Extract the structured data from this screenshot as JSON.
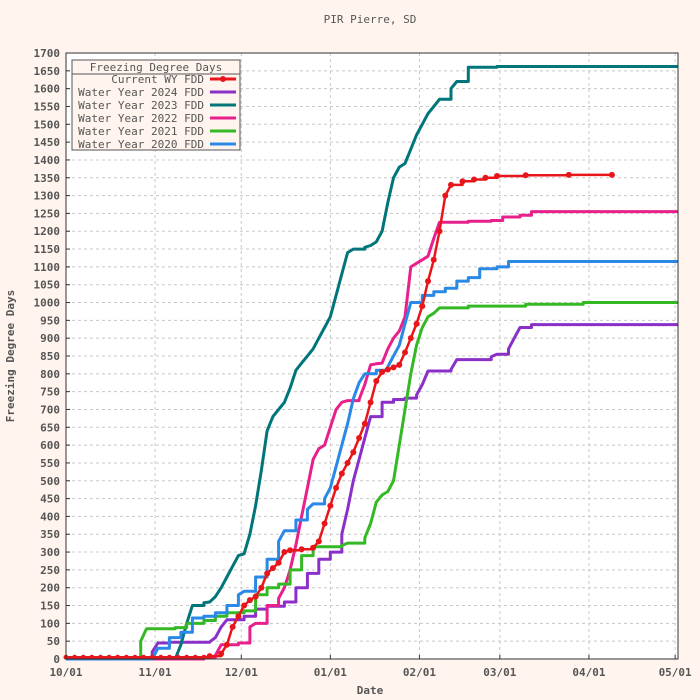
{
  "chart_data": {
    "type": "line",
    "title": "PIR Pierre, SD",
    "xlabel": "Date",
    "ylabel": "Freezing Degree Days",
    "ylim": [
      0,
      1700
    ],
    "ytick_step": 50,
    "xlim_days": [
      0,
      213
    ],
    "x_ticks": [
      {
        "label": "10/01",
        "day": 0
      },
      {
        "label": "11/01",
        "day": 31
      },
      {
        "label": "12/01",
        "day": 61
      },
      {
        "label": "01/01",
        "day": 92
      },
      {
        "label": "02/01",
        "day": 123
      },
      {
        "label": "03/01",
        "day": 151
      },
      {
        "label": "04/01",
        "day": 182
      },
      {
        "label": "05/01",
        "day": 212
      }
    ],
    "grid": true,
    "legend": {
      "title": "Freezing Degree Days",
      "placement": "top-left"
    },
    "series": [
      {
        "name": "Current WY FDD",
        "color": "#e8161b",
        "marker": "circle",
        "points": [
          [
            0,
            5
          ],
          [
            40,
            5
          ],
          [
            50,
            8
          ],
          [
            54,
            15
          ],
          [
            56,
            40
          ],
          [
            58,
            90
          ],
          [
            60,
            120
          ],
          [
            62,
            150
          ],
          [
            64,
            165
          ],
          [
            66,
            175
          ],
          [
            68,
            200
          ],
          [
            70,
            240
          ],
          [
            72,
            255
          ],
          [
            74,
            270
          ],
          [
            76,
            300
          ],
          [
            78,
            305
          ],
          [
            82,
            308
          ],
          [
            86,
            312
          ],
          [
            88,
            330
          ],
          [
            90,
            380
          ],
          [
            92,
            430
          ],
          [
            94,
            480
          ],
          [
            96,
            520
          ],
          [
            98,
            550
          ],
          [
            100,
            580
          ],
          [
            102,
            620
          ],
          [
            104,
            660
          ],
          [
            106,
            720
          ],
          [
            108,
            780
          ],
          [
            110,
            805
          ],
          [
            112,
            812
          ],
          [
            114,
            818
          ],
          [
            116,
            825
          ],
          [
            118,
            860
          ],
          [
            120,
            900
          ],
          [
            122,
            940
          ],
          [
            124,
            990
          ],
          [
            126,
            1060
          ],
          [
            128,
            1120
          ],
          [
            130,
            1200
          ],
          [
            132,
            1300
          ],
          [
            134,
            1330
          ],
          [
            138,
            1340
          ],
          [
            142,
            1345
          ],
          [
            146,
            1350
          ],
          [
            150,
            1355
          ],
          [
            160,
            1357
          ],
          [
            175,
            1358
          ],
          [
            190,
            1358
          ]
        ]
      },
      {
        "name": "Water Year 2024 FDD",
        "color": "#8b2fc9",
        "marker": "none",
        "points": [
          [
            0,
            0
          ],
          [
            26,
            0
          ],
          [
            30,
            20
          ],
          [
            32,
            45
          ],
          [
            36,
            47
          ],
          [
            50,
            48
          ],
          [
            52,
            60
          ],
          [
            54,
            90
          ],
          [
            56,
            110
          ],
          [
            62,
            120
          ],
          [
            66,
            140
          ],
          [
            70,
            148
          ],
          [
            76,
            160
          ],
          [
            80,
            200
          ],
          [
            84,
            240
          ],
          [
            88,
            280
          ],
          [
            92,
            300
          ],
          [
            96,
            350
          ],
          [
            98,
            420
          ],
          [
            100,
            500
          ],
          [
            102,
            560
          ],
          [
            104,
            620
          ],
          [
            106,
            680
          ],
          [
            110,
            720
          ],
          [
            114,
            728
          ],
          [
            118,
            732
          ],
          [
            122,
            740
          ],
          [
            124,
            770
          ],
          [
            126,
            808
          ],
          [
            134,
            812
          ],
          [
            136,
            840
          ],
          [
            148,
            848
          ],
          [
            150,
            855
          ],
          [
            154,
            870
          ],
          [
            156,
            900
          ],
          [
            158,
            930
          ],
          [
            162,
            938
          ],
          [
            213,
            938
          ]
        ]
      },
      {
        "name": "Water Year 2023 FDD",
        "color": "#00757a",
        "marker": "none",
        "points": [
          [
            0,
            0
          ],
          [
            38,
            0
          ],
          [
            40,
            40
          ],
          [
            42,
            100
          ],
          [
            44,
            150
          ],
          [
            48,
            158
          ],
          [
            50,
            160
          ],
          [
            52,
            175
          ],
          [
            54,
            200
          ],
          [
            56,
            230
          ],
          [
            58,
            260
          ],
          [
            60,
            290
          ],
          [
            62,
            295
          ],
          [
            64,
            350
          ],
          [
            66,
            430
          ],
          [
            68,
            530
          ],
          [
            70,
            640
          ],
          [
            72,
            680
          ],
          [
            74,
            700
          ],
          [
            76,
            720
          ],
          [
            78,
            760
          ],
          [
            80,
            810
          ],
          [
            82,
            830
          ],
          [
            84,
            850
          ],
          [
            86,
            870
          ],
          [
            88,
            900
          ],
          [
            90,
            930
          ],
          [
            92,
            960
          ],
          [
            94,
            1020
          ],
          [
            96,
            1080
          ],
          [
            98,
            1140
          ],
          [
            100,
            1150
          ],
          [
            104,
            1155
          ],
          [
            106,
            1160
          ],
          [
            108,
            1170
          ],
          [
            110,
            1200
          ],
          [
            112,
            1280
          ],
          [
            114,
            1350
          ],
          [
            116,
            1380
          ],
          [
            118,
            1390
          ],
          [
            120,
            1430
          ],
          [
            122,
            1470
          ],
          [
            124,
            1500
          ],
          [
            126,
            1530
          ],
          [
            128,
            1550
          ],
          [
            130,
            1570
          ],
          [
            134,
            1600
          ],
          [
            136,
            1620
          ],
          [
            140,
            1660
          ],
          [
            150,
            1662
          ],
          [
            213,
            1662
          ]
        ]
      },
      {
        "name": "Water Year 2022 FDD",
        "color": "#e8208c",
        "marker": "none",
        "points": [
          [
            0,
            0
          ],
          [
            44,
            0
          ],
          [
            48,
            5
          ],
          [
            52,
            10
          ],
          [
            54,
            40
          ],
          [
            60,
            45
          ],
          [
            64,
            90
          ],
          [
            66,
            100
          ],
          [
            70,
            150
          ],
          [
            74,
            170
          ],
          [
            76,
            200
          ],
          [
            78,
            250
          ],
          [
            80,
            320
          ],
          [
            82,
            400
          ],
          [
            84,
            480
          ],
          [
            86,
            560
          ],
          [
            88,
            590
          ],
          [
            90,
            600
          ],
          [
            92,
            650
          ],
          [
            94,
            700
          ],
          [
            96,
            720
          ],
          [
            98,
            725
          ],
          [
            102,
            728
          ],
          [
            104,
            770
          ],
          [
            106,
            825
          ],
          [
            108,
            828
          ],
          [
            110,
            830
          ],
          [
            112,
            870
          ],
          [
            114,
            900
          ],
          [
            116,
            920
          ],
          [
            118,
            960
          ],
          [
            120,
            1100
          ],
          [
            122,
            1110
          ],
          [
            124,
            1120
          ],
          [
            126,
            1130
          ],
          [
            128,
            1180
          ],
          [
            130,
            1225
          ],
          [
            140,
            1228
          ],
          [
            148,
            1230
          ],
          [
            152,
            1240
          ],
          [
            158,
            1245
          ],
          [
            162,
            1255
          ],
          [
            213,
            1255
          ]
        ]
      },
      {
        "name": "Water Year 2021 FDD",
        "color": "#34b925",
        "marker": "none",
        "points": [
          [
            0,
            0
          ],
          [
            22,
            0
          ],
          [
            26,
            50
          ],
          [
            28,
            85
          ],
          [
            38,
            88
          ],
          [
            42,
            100
          ],
          [
            48,
            108
          ],
          [
            52,
            120
          ],
          [
            56,
            130
          ],
          [
            62,
            135
          ],
          [
            66,
            180
          ],
          [
            70,
            200
          ],
          [
            74,
            210
          ],
          [
            78,
            250
          ],
          [
            82,
            290
          ],
          [
            86,
            315
          ],
          [
            96,
            318
          ],
          [
            98,
            325
          ],
          [
            104,
            340
          ],
          [
            106,
            380
          ],
          [
            108,
            440
          ],
          [
            110,
            460
          ],
          [
            112,
            470
          ],
          [
            114,
            500
          ],
          [
            116,
            600
          ],
          [
            118,
            700
          ],
          [
            120,
            800
          ],
          [
            122,
            880
          ],
          [
            124,
            930
          ],
          [
            126,
            960
          ],
          [
            128,
            970
          ],
          [
            130,
            985
          ],
          [
            140,
            990
          ],
          [
            160,
            995
          ],
          [
            180,
            1000
          ],
          [
            213,
            1000
          ]
        ]
      },
      {
        "name": "Water Year 2020 FDD",
        "color": "#2a88e6",
        "marker": "none",
        "points": [
          [
            0,
            0
          ],
          [
            30,
            0
          ],
          [
            32,
            30
          ],
          [
            36,
            60
          ],
          [
            40,
            75
          ],
          [
            44,
            115
          ],
          [
            48,
            120
          ],
          [
            52,
            130
          ],
          [
            56,
            150
          ],
          [
            60,
            180
          ],
          [
            62,
            190
          ],
          [
            66,
            230
          ],
          [
            70,
            280
          ],
          [
            74,
            330
          ],
          [
            76,
            360
          ],
          [
            80,
            390
          ],
          [
            84,
            420
          ],
          [
            86,
            435
          ],
          [
            90,
            450
          ],
          [
            92,
            480
          ],
          [
            94,
            540
          ],
          [
            96,
            600
          ],
          [
            98,
            660
          ],
          [
            100,
            730
          ],
          [
            102,
            775
          ],
          [
            104,
            800
          ],
          [
            108,
            810
          ],
          [
            112,
            820
          ],
          [
            114,
            850
          ],
          [
            116,
            880
          ],
          [
            118,
            940
          ],
          [
            120,
            1000
          ],
          [
            124,
            1020
          ],
          [
            128,
            1030
          ],
          [
            132,
            1040
          ],
          [
            136,
            1060
          ],
          [
            140,
            1070
          ],
          [
            144,
            1095
          ],
          [
            150,
            1100
          ],
          [
            154,
            1115
          ],
          [
            213,
            1115
          ]
        ]
      }
    ]
  }
}
